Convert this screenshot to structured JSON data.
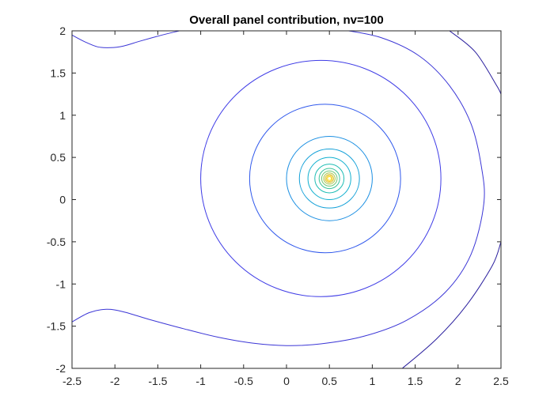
{
  "chart_data": {
    "type": "contour",
    "title": "Overall panel contribution, nv=100",
    "xlabel": "",
    "ylabel": "",
    "xlim": [
      -2.5,
      2.5
    ],
    "ylim": [
      -2,
      2
    ],
    "x_ticks": [
      -2.5,
      -2,
      -1.5,
      -1,
      -0.5,
      0,
      0.5,
      1,
      1.5,
      2,
      2.5
    ],
    "x_tick_labels": [
      "-2.5",
      "-2",
      "-1.5",
      "-1",
      "-0.5",
      "0",
      "0.5",
      "1",
      "1.5",
      "2",
      "2.5"
    ],
    "y_ticks": [
      -2,
      -1.5,
      -1,
      -0.5,
      0,
      0.5,
      1,
      1.5,
      2
    ],
    "y_tick_labels": [
      "-2",
      "-1.5",
      "-1",
      "-0.5",
      "0",
      "0.5",
      "1",
      "1.5",
      "2"
    ],
    "grid": false,
    "center": [
      0.5,
      0.25
    ],
    "circular_levels": [
      {
        "radius": 1.4,
        "x_offset": -0.1,
        "color": "#3f3ce6"
      },
      {
        "radius": 0.88,
        "x_offset": -0.05,
        "color": "#2f58ec"
      },
      {
        "radius": 0.5,
        "color": "#1b8fe2"
      },
      {
        "radius": 0.35,
        "color": "#13a0d8"
      },
      {
        "radius": 0.25,
        "color": "#10afcf"
      },
      {
        "radius": 0.17,
        "color": "#1cbcb3"
      },
      {
        "radius": 0.12,
        "color": "#38c49a"
      },
      {
        "radius": 0.09,
        "color": "#72c874"
      },
      {
        "radius": 0.066,
        "color": "#a8c44f"
      },
      {
        "radius": 0.048,
        "color": "#d6bf34"
      },
      {
        "radius": 0.034,
        "color": "#f2cc2a"
      },
      {
        "radius": 0.022,
        "color": "#f9e025"
      }
    ],
    "outer_contours": [
      {
        "name": "top-left",
        "color": "#3b36d6",
        "points": [
          [
            -2.5,
            1.95
          ],
          [
            -2.35,
            1.87
          ],
          [
            -2.2,
            1.81
          ],
          [
            -2.05,
            1.8
          ],
          [
            -1.9,
            1.82
          ],
          [
            -1.7,
            1.88
          ],
          [
            -1.45,
            1.95
          ],
          [
            -1.25,
            2.0
          ]
        ]
      },
      {
        "name": "lower",
        "color": "#3b36d6",
        "points": [
          [
            -2.5,
            -1.45
          ],
          [
            -2.3,
            -1.34
          ],
          [
            -2.1,
            -1.3
          ],
          [
            -1.9,
            -1.33
          ],
          [
            -1.6,
            -1.42
          ],
          [
            -1.2,
            -1.53
          ],
          [
            -0.8,
            -1.63
          ],
          [
            -0.4,
            -1.7
          ],
          [
            0.0,
            -1.73
          ],
          [
            0.4,
            -1.71
          ],
          [
            0.9,
            -1.62
          ],
          [
            1.4,
            -1.43
          ],
          [
            1.85,
            -1.1
          ],
          [
            2.15,
            -0.65
          ],
          [
            2.3,
            -0.05
          ],
          [
            2.27,
            0.4
          ],
          [
            2.15,
            0.9
          ],
          [
            1.9,
            1.35
          ],
          [
            1.55,
            1.7
          ],
          [
            1.1,
            1.92
          ],
          [
            0.6,
            2.02
          ]
        ]
      },
      {
        "name": "far-right",
        "color": "#2a1f9e",
        "points": [
          [
            1.9,
            2.0
          ],
          [
            2.2,
            1.75
          ],
          [
            2.45,
            1.35
          ],
          [
            2.5,
            1.25
          ]
        ]
      },
      {
        "name": "lower-right",
        "color": "#2a1f9e",
        "points": [
          [
            1.35,
            -2.0
          ],
          [
            1.75,
            -1.65
          ],
          [
            2.1,
            -1.25
          ],
          [
            2.4,
            -0.78
          ],
          [
            2.5,
            -0.5
          ]
        ]
      }
    ]
  }
}
